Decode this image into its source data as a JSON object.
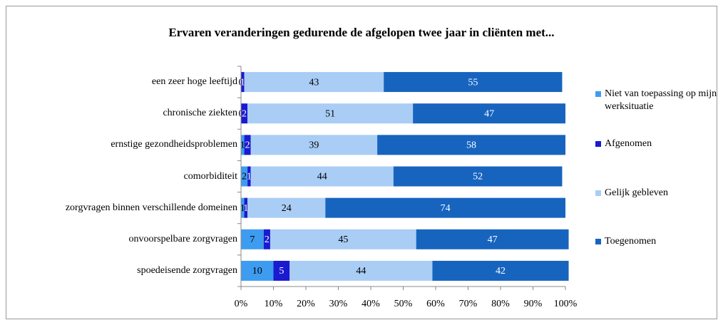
{
  "chart_data": {
    "type": "stacked-barh",
    "title": "Ervaren veranderingen gedurende de afgelopen twee jaar in  cliënten met...",
    "categories": [
      "een zeer hoge leeftijd",
      "chronische ziekten",
      "ernstige gezondheidsproblemen",
      "comorbiditeit",
      "zorgvragen binnen verschillende domeinen",
      "onvoorspelbare zorgvragen",
      "spoedeisende zorgvragen"
    ],
    "series": [
      {
        "name": "Niet van toepassing op mijn werksituatie",
        "color": "#3d9cf0",
        "values": [
          0,
          0,
          1,
          2,
          1,
          7,
          10
        ]
      },
      {
        "name": "Afgenomen",
        "color": "#1a1ad0",
        "values": [
          1,
          2,
          2,
          1,
          1,
          2,
          5
        ]
      },
      {
        "name": "Gelijk gebleven",
        "color": "#a9cdf5",
        "values": [
          43,
          51,
          39,
          44,
          24,
          45,
          44
        ]
      },
      {
        "name": "Toegenomen",
        "color": "#1764bf",
        "values": [
          55,
          47,
          58,
          52,
          74,
          47,
          42
        ]
      }
    ],
    "xlim": [
      0,
      100
    ],
    "xticks": [
      {
        "value": 0,
        "label": "0%"
      },
      {
        "value": 10,
        "label": "10%"
      },
      {
        "value": 20,
        "label": "20%"
      },
      {
        "value": 30,
        "label": "30%"
      },
      {
        "value": 40,
        "label": "40%"
      },
      {
        "value": 50,
        "label": "50%"
      },
      {
        "value": 60,
        "label": "60%"
      },
      {
        "value": 70,
        "label": "70%"
      },
      {
        "value": 80,
        "label": "80%"
      },
      {
        "value": 90,
        "label": "90%"
      },
      {
        "value": 100,
        "label": "100%"
      }
    ],
    "legend": "right"
  }
}
